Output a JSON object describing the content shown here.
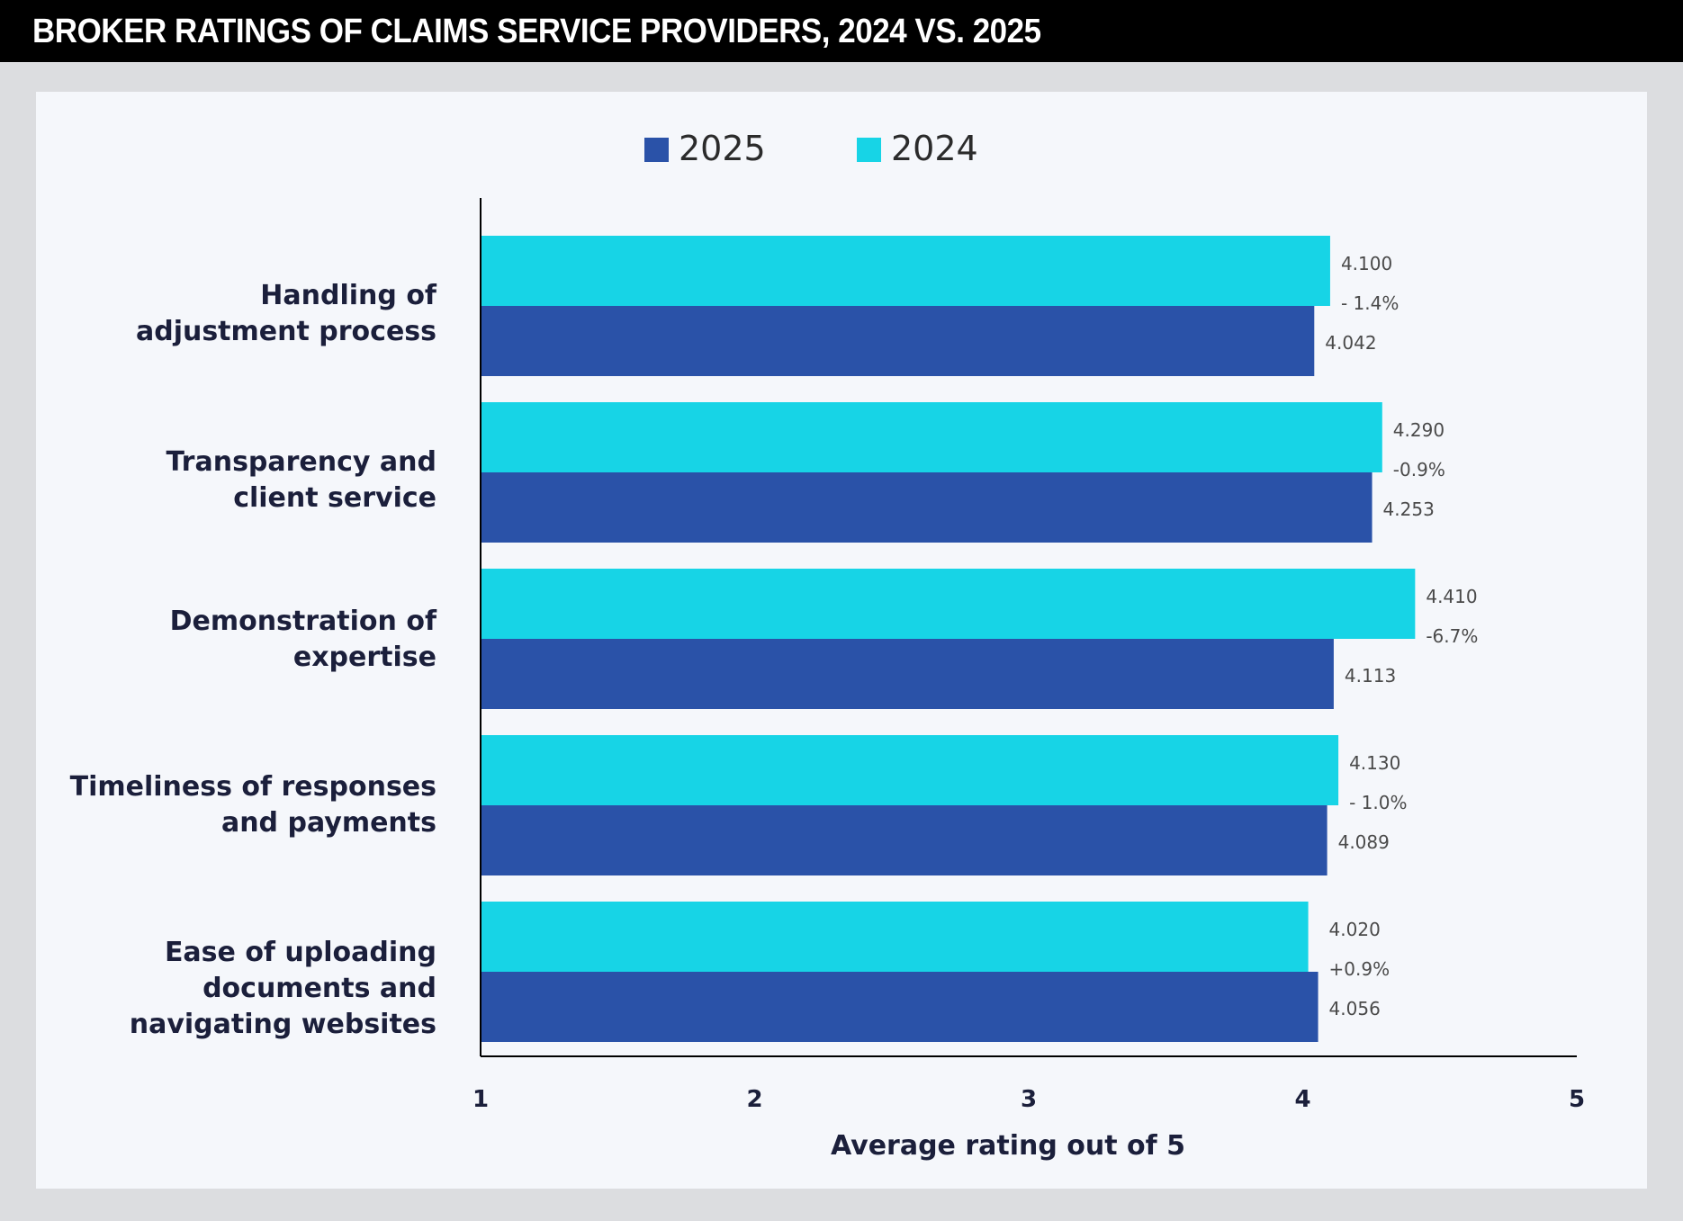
{
  "header": {
    "title": "BROKER RATINGS OF CLAIMS SERVICE PROVIDERS, 2024 VS. 2025"
  },
  "colors": {
    "series_2025": "#2a52a8",
    "series_2024": "#17d4e6",
    "axis": "#000000"
  },
  "chart_data": {
    "type": "bar",
    "orientation": "horizontal",
    "title": "BROKER RATINGS OF CLAIMS SERVICE PROVIDERS, 2024 VS. 2025",
    "xlabel": "Average rating out of 5",
    "ylabel": "",
    "xlim": [
      1,
      5
    ],
    "xticks": [
      "1",
      "2",
      "3",
      "4",
      "5"
    ],
    "legend": [
      "2025",
      "2024"
    ],
    "legend_position": "top",
    "categories": [
      "Handling of\nadjustment process",
      "Transparency and\nclient service",
      "Demonstration of\nexpertise",
      "Timeliness of responses\nand payments",
      "Ease of uploading\ndocuments and\nnavigating websites"
    ],
    "series": [
      {
        "name": "2024",
        "values": [
          4.1,
          4.29,
          4.41,
          4.13,
          4.02
        ],
        "labels": [
          "4.100",
          "4.290",
          "4.410",
          "4.130",
          "4.020"
        ]
      },
      {
        "name": "2025",
        "values": [
          4.042,
          4.253,
          4.113,
          4.089,
          4.056
        ],
        "labels": [
          "4.042",
          "4.253",
          "4.113",
          "4.089",
          "4.056"
        ]
      }
    ],
    "change_labels": [
      "- 1.4%",
      "-0.9%",
      "-6.7%",
      "- 1.0%",
      "+0.9%"
    ]
  }
}
